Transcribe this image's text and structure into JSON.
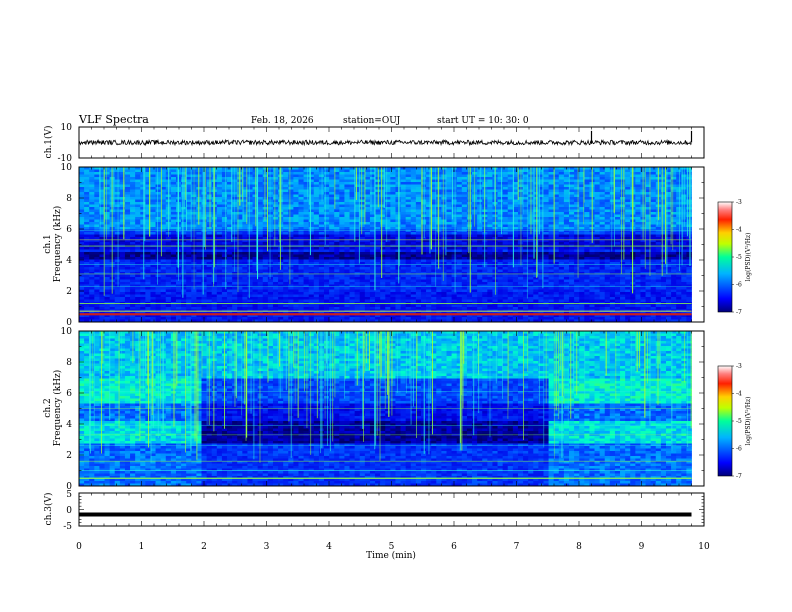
{
  "header": {
    "title": "VLF Spectra",
    "date": "Feb. 18, 2026",
    "station": "station=OUJ",
    "start": "start  UT =   10: 30: 0"
  },
  "chart_data": [
    {
      "type": "line",
      "name": "ch1-waveform",
      "ylabel": "ch.1(V)",
      "ylim": [
        -10,
        10
      ],
      "y_ticks": [
        "10",
        "-10"
      ],
      "xlim": [
        0,
        10
      ],
      "mean_level": 0,
      "spike_times_min": [
        8.2,
        9.8
      ]
    },
    {
      "type": "heatmap",
      "name": "ch1-spectrogram",
      "ylabel_line1": "ch.1",
      "ylabel_line2": "Frequency (kHz)",
      "ylim": [
        0,
        10
      ],
      "y_ticks": [
        "0",
        "2",
        "4",
        "6",
        "8",
        "10"
      ],
      "xlim": [
        0,
        10
      ],
      "colorbar": {
        "label": "log(PSD)(V²/Hz)",
        "range": [
          -7,
          -3
        ],
        "ticks": [
          "-3",
          "-4",
          "-5",
          "-6",
          "-7"
        ]
      },
      "notable_features": {
        "strong_line_khz": 0.5,
        "dark_band_khz": [
          4.1,
          4.5
        ]
      }
    },
    {
      "type": "heatmap",
      "name": "ch2-spectrogram",
      "ylabel_line1": "ch.2",
      "ylabel_line2": "Frequency (kHz)",
      "ylim": [
        0,
        10
      ],
      "y_ticks": [
        "0",
        "2",
        "4",
        "6",
        "8",
        "10"
      ],
      "xlim": [
        0,
        10
      ],
      "colorbar": {
        "label": "log(PSD)(V²/Hz)",
        "range": [
          -7,
          -3
        ],
        "ticks": [
          "-3",
          "-4",
          "-5",
          "-6",
          "-7"
        ]
      },
      "notable_features": {
        "quiet_interval_min": [
          2.0,
          7.5
        ]
      }
    },
    {
      "type": "line",
      "name": "ch3-waveform",
      "ylabel": "ch.3(V)",
      "ylim": [
        -5,
        5
      ],
      "y_ticks": [
        "5",
        "0",
        "-5"
      ],
      "xlim": [
        0,
        10
      ],
      "mean_level": -1.5
    }
  ],
  "xaxis": {
    "label": "Time (min)",
    "ticks": [
      "0",
      "1",
      "2",
      "3",
      "4",
      "5",
      "6",
      "7",
      "8",
      "9",
      "10"
    ],
    "data_end_min": 9.8
  },
  "colors": {
    "trace": "#000000",
    "background": "#ffffff"
  }
}
